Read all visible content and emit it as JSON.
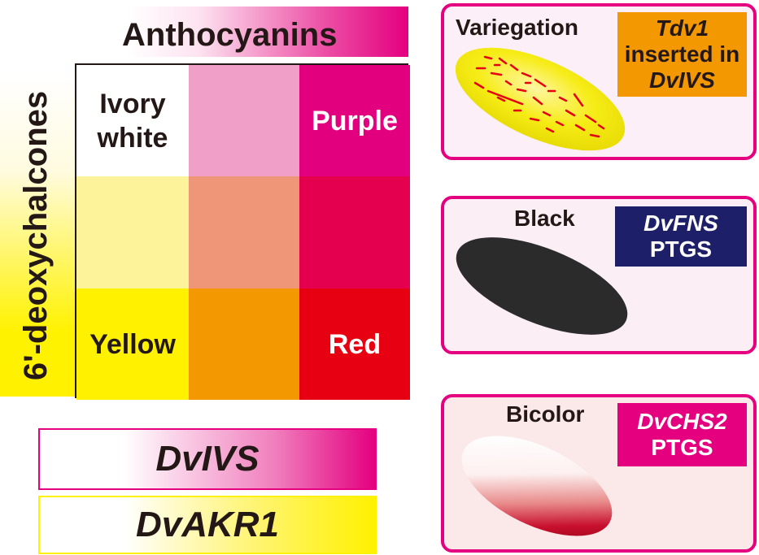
{
  "axes": {
    "anthocyanins": "Anthocyanins",
    "deoxychalcones": "6'-deoxychalcones"
  },
  "grid": {
    "cells": [
      {
        "label_line1": "Ivory",
        "label_line2": "white",
        "color": "#ffffff",
        "text_color": "#231815"
      },
      {
        "label_line1": "",
        "label_line2": "",
        "color": "#f09fc8",
        "text_color": "#231815"
      },
      {
        "label_line1": "Purple",
        "label_line2": "",
        "color": "#e3007f",
        "text_color": "#ffffff"
      },
      {
        "label_line1": "",
        "label_line2": "",
        "color": "#fdf39a",
        "text_color": "#231815"
      },
      {
        "label_line1": "",
        "label_line2": "",
        "color": "#ee9677",
        "text_color": "#231815"
      },
      {
        "label_line1": "",
        "label_line2": "",
        "color": "#e5004f",
        "text_color": "#231815"
      },
      {
        "label_line1": "Yellow",
        "label_line2": "",
        "color": "#fff100",
        "text_color": "#231815"
      },
      {
        "label_line1": "",
        "label_line2": "",
        "color": "#f39800",
        "text_color": "#231815"
      },
      {
        "label_line1": "Red",
        "label_line2": "",
        "color": "#e60012",
        "text_color": "#ffffff"
      }
    ]
  },
  "genes": {
    "ivs": "DvIVS",
    "akr": "DvAKR1"
  },
  "panels": {
    "variegation": {
      "title": "Variegation",
      "tag_line1": "Tdv1",
      "tag_line2": "inserted in",
      "tag_line3": "DvIVS",
      "tag_color": "#f39800"
    },
    "black": {
      "title": "Black",
      "tag_line1": "DvFNS",
      "tag_line2": "PTGS",
      "tag_color": "#1d2068"
    },
    "bicolor": {
      "title": "Bicolor",
      "tag_line1": "DvCHS2",
      "tag_line2": "PTGS",
      "tag_color": "#e4007f"
    }
  },
  "colors": {
    "border_pink": "#e4007f",
    "petal_yellow": "#f4ea00",
    "petal_black": "#2b2b2b",
    "petal_red": "#c8102e"
  }
}
